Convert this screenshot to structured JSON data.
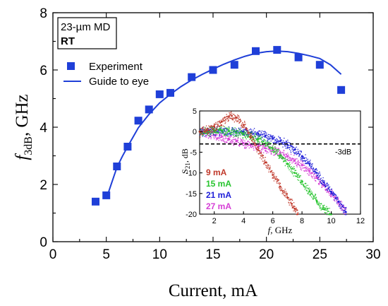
{
  "chart_data": [
    {
      "type": "scatter",
      "title": "",
      "xlabel": "Current, mA",
      "ylabel_symbol": "f",
      "ylabel_subscript": "3dB",
      "ylabel_unit": ", GHz",
      "xlim": [
        0,
        30
      ],
      "ylim": [
        0,
        8
      ],
      "x_ticks": [
        0,
        5,
        10,
        15,
        20,
        25,
        30
      ],
      "y_ticks": [
        0,
        2,
        4,
        6,
        8
      ],
      "annotation_lines": [
        "23-µm MD",
        "RT"
      ],
      "legend_position": "top-left",
      "series": [
        {
          "name": "Experiment",
          "style": "square-marker",
          "color": "#1f3fd8",
          "x": [
            4,
            5,
            6,
            7,
            8,
            9,
            10,
            11,
            13,
            15,
            17,
            19,
            21,
            23,
            25,
            27
          ],
          "y": [
            1.4,
            1.62,
            2.63,
            3.32,
            4.23,
            4.62,
            5.15,
            5.2,
            5.75,
            6.0,
            6.18,
            6.66,
            6.7,
            6.44,
            6.18,
            5.3
          ]
        },
        {
          "name": "Guide to eye",
          "style": "line",
          "color": "#1f3fd8",
          "x": [
            5,
            5.5,
            6,
            6.5,
            7,
            8,
            9,
            10,
            11,
            12,
            13,
            14,
            15,
            16,
            17,
            18,
            19,
            20,
            21,
            22,
            23,
            24,
            25,
            26,
            27
          ],
          "y": [
            1.5,
            2.05,
            2.6,
            2.98,
            3.32,
            3.98,
            4.45,
            4.85,
            5.15,
            5.42,
            5.65,
            5.85,
            6.03,
            6.2,
            6.35,
            6.48,
            6.58,
            6.64,
            6.66,
            6.64,
            6.58,
            6.5,
            6.4,
            6.18,
            5.85
          ]
        }
      ]
    },
    {
      "type": "scatter",
      "title": "",
      "xlabel_symbol": "f",
      "xlabel_unit": ", GHz",
      "ylabel_main": "S",
      "ylabel_subscript": "21",
      "ylabel_unit": ", dB",
      "xlim": [
        1,
        12
      ],
      "ylim": [
        -20,
        5
      ],
      "x_ticks": [
        2,
        4,
        6,
        8,
        10,
        12
      ],
      "y_ticks": [
        5,
        0,
        -5,
        -10,
        -15,
        -20
      ],
      "reference_line": {
        "y": -3,
        "label": "-3dB"
      },
      "legend_position": "bottom-left",
      "series": [
        {
          "name": "9 mA",
          "color": "#c0392b",
          "x": [
            1,
            1.5,
            2,
            2.5,
            3,
            3.2,
            3.5,
            4,
            4.5,
            5,
            5.5,
            6,
            6.5,
            7,
            7.3,
            7.5,
            7.7
          ],
          "y": [
            0,
            0.5,
            1.2,
            2.4,
            3.7,
            3.8,
            3.4,
            1.6,
            -1.5,
            -4.5,
            -7.5,
            -10.5,
            -13.3,
            -16,
            -17.5,
            -18.7,
            -20
          ]
        },
        {
          "name": "15 mA",
          "color": "#27c42e",
          "x": [
            1,
            1.5,
            2,
            2.5,
            3,
            3.5,
            4,
            4.5,
            5,
            5.5,
            6,
            6.5,
            7,
            7.5,
            8,
            8.5,
            9,
            9.5,
            10
          ],
          "y": [
            0,
            0.2,
            0.4,
            0.3,
            0.1,
            -0.2,
            -0.5,
            -1,
            -1.8,
            -2.8,
            -4,
            -5.8,
            -7.8,
            -10,
            -12.2,
            -14.5,
            -16.7,
            -18.8,
            -20
          ]
        },
        {
          "name": "21 mA",
          "color": "#1f1fd8",
          "x": [
            1,
            1.5,
            2,
            2.5,
            3,
            3.5,
            4,
            4.5,
            5,
            5.5,
            6,
            6.5,
            7,
            7.5,
            8,
            8.5,
            9,
            9.5,
            10,
            10.5,
            11
          ],
          "y": [
            0,
            0.1,
            0.2,
            0.2,
            0.1,
            0.1,
            0,
            -0.2,
            -0.5,
            -1,
            -1.6,
            -2.3,
            -3.2,
            -4.4,
            -6,
            -7.8,
            -10,
            -12.3,
            -14.6,
            -17,
            -19.5
          ]
        },
        {
          "name": "27 mA",
          "color": "#d63fd6",
          "x": [
            1,
            1.5,
            2,
            2.5,
            3,
            3.5,
            4,
            4.5,
            5,
            5.5,
            6,
            6.5,
            7,
            7.5,
            8,
            8.5,
            9,
            9.5,
            10,
            10.5,
            11
          ],
          "y": [
            0,
            -0.3,
            -0.8,
            -1.3,
            -1.8,
            -2.3,
            -2.8,
            -3.2,
            -3.6,
            -4,
            -4.5,
            -5.1,
            -6,
            -7,
            -8.2,
            -9.6,
            -11.2,
            -13,
            -15,
            -17.2,
            -19.5
          ]
        }
      ]
    }
  ]
}
